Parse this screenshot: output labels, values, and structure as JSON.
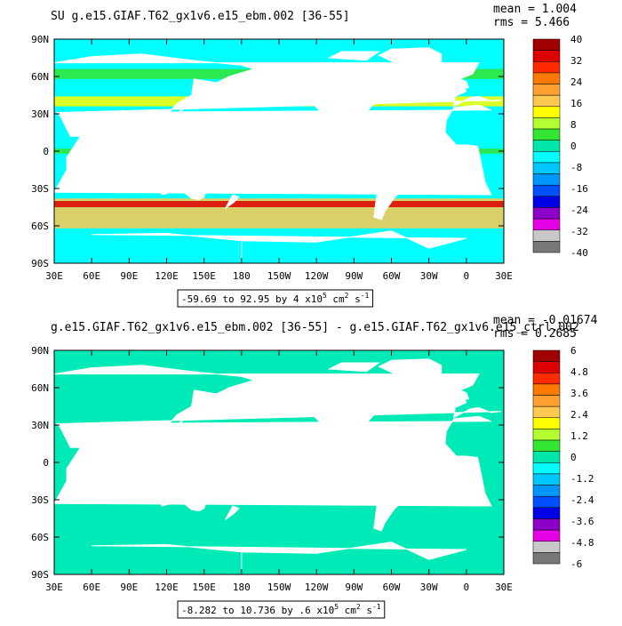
{
  "chart_data": [
    {
      "type": "heatmap",
      "title": "SU g.e15.GIAF.T62_gx1v6.e15_ebm.002 [36-55]",
      "stats": {
        "mean": "mean = 1.004",
        "rms": "rms = 5.466"
      },
      "range_label": {
        "text": "-59.69 to 92.95 by 4 x10",
        "exp": "5",
        "unit": " cm",
        "unit_exp": "2",
        "unit2": " s",
        "unit2_exp": "-1"
      },
      "x_ticks": [
        "30E",
        "60E",
        "90E",
        "120E",
        "150E",
        "180",
        "150W",
        "120W",
        "90W",
        "60W",
        "30W",
        "0",
        "30E"
      ],
      "y_ticks": [
        "90N",
        "60N",
        "30N",
        "0",
        "30S",
        "60S",
        "90S"
      ],
      "xlim": [
        30,
        390
      ],
      "ylim": [
        -90,
        90
      ],
      "colorbar": {
        "labels": [
          "40",
          "32",
          "24",
          "16",
          "8",
          "0",
          "-8",
          "-16",
          "-24",
          "-32",
          "-40"
        ],
        "colors": [
          "#a00000",
          "#dc0000",
          "#ff2a00",
          "#ff7800",
          "#ffa030",
          "#ffc850",
          "#ffff00",
          "#b4ff32",
          "#32e632",
          "#00e6aa",
          "#00ffff",
          "#00c8ff",
          "#0096ff",
          "#0050ff",
          "#0000e6",
          "#8c00c8",
          "#e600e6",
          "#c8c8c8",
          "#787878"
        ]
      },
      "field_bands": [
        {
          "lat_range": [
            -62,
            -38
          ],
          "value": 20
        },
        {
          "lat_range": [
            -45,
            -40
          ],
          "value": 36
        },
        {
          "lat_range": [
            -2,
            2
          ],
          "value": 6
        },
        {
          "lat_range": [
            36,
            44
          ],
          "value": 12
        },
        {
          "lat_range": [
            58,
            66
          ],
          "value": 4
        }
      ]
    },
    {
      "type": "heatmap",
      "title": "g.e15.GIAF.T62_gx1v6.e15_ebm.002 [36-55] - g.e15.GIAF.T62_gx1v6.e15_ctrl.002",
      "stats": {
        "mean": "mean = -0.01674",
        "rms": "rms = 0.2685"
      },
      "range_label": {
        "text": "-8.282 to 10.736 by .6 x10",
        "exp": "5",
        "unit": " cm",
        "unit_exp": "2",
        "unit2": " s",
        "unit2_exp": "-1"
      },
      "x_ticks": [
        "30E",
        "60E",
        "90E",
        "120E",
        "150E",
        "180",
        "150W",
        "120W",
        "90W",
        "60W",
        "30W",
        "0",
        "30E"
      ],
      "y_ticks": [
        "90N",
        "60N",
        "30N",
        "0",
        "30S",
        "60S",
        "90S"
      ],
      "xlim": [
        30,
        390
      ],
      "ylim": [
        -90,
        90
      ],
      "colorbar": {
        "labels": [
          "6",
          "4.8",
          "3.6",
          "2.4",
          "1.2",
          "0",
          "-1.2",
          "-2.4",
          "-3.6",
          "-4.8",
          "-6"
        ],
        "colors": [
          "#a00000",
          "#dc0000",
          "#ff2a00",
          "#ff7800",
          "#ffa030",
          "#ffc850",
          "#ffff00",
          "#b4ff32",
          "#32e632",
          "#00e6aa",
          "#00ffff",
          "#00c8ff",
          "#0096ff",
          "#0050ff",
          "#0000e6",
          "#8c00c8",
          "#e600e6",
          "#c8c8c8",
          "#787878"
        ]
      },
      "field_bands": [
        {
          "lat_range": [
            -90,
            90
          ],
          "value": 0
        }
      ]
    }
  ]
}
